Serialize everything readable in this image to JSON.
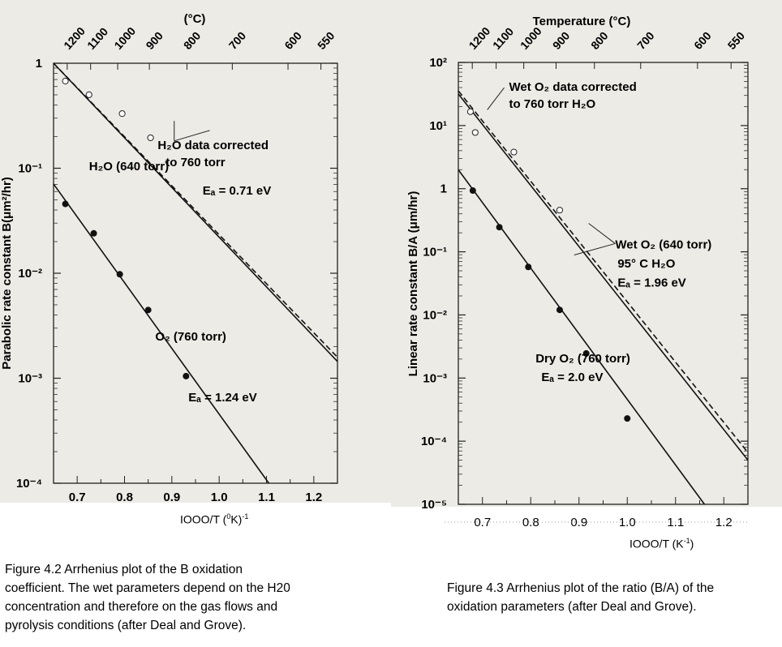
{
  "chart_data": [
    {
      "type": "line",
      "log_y": true,
      "title_top_axis": "(°C)",
      "top_ticks": [
        "1200",
        "1100",
        "1000",
        "900",
        "800",
        "700",
        "600",
        "550"
      ],
      "ylabel": "Parabolic rate constant B(μm²/hr)",
      "xlabel": "IOOO/T (⁰K)⁻¹",
      "xlim": [
        0.65,
        1.25
      ],
      "ylim_exp": [
        -4,
        0
      ],
      "x_ticks": [
        "0.7",
        "0.8",
        "0.9",
        "1.0",
        "1.1",
        "1.2"
      ],
      "y_ticks": [
        "1",
        "10⁻¹",
        "10⁻²",
        "10⁻³",
        "10⁻⁴"
      ],
      "series": [
        {
          "name": "H₂O data corrected to 760 torr",
          "style": "dashed",
          "x": [
            0.65,
            1.25
          ],
          "log10y": [
            0.04,
            -2.8
          ]
        },
        {
          "name": "H₂O (640 torr)",
          "style": "solid",
          "x": [
            0.65,
            1.25
          ],
          "log10y": [
            0.0,
            -2.84
          ],
          "points_open": [
            [
              0.675,
              -0.17
            ],
            [
              0.725,
              -0.3
            ],
            [
              0.795,
              -0.48
            ],
            [
              0.855,
              -0.71
            ]
          ]
        },
        {
          "name": "O₂ (760 torr)",
          "style": "solid",
          "x": [
            0.65,
            1.105
          ],
          "log10y": [
            -1.15,
            -4.0
          ],
          "points_filled": [
            [
              0.675,
              -1.34
            ],
            [
              0.735,
              -1.62
            ],
            [
              0.79,
              -2.01
            ],
            [
              0.85,
              -2.35
            ],
            [
              0.93,
              -2.98
            ]
          ]
        }
      ],
      "annotations": [
        {
          "text": "H₂O data corrected",
          "x": 0.87,
          "log10y": -0.82
        },
        {
          "text": "to 760 torr",
          "x": 0.887,
          "log10y": -0.98
        },
        {
          "text": "H₂O (640 torr)",
          "x": 0.725,
          "log10y": -1.02
        },
        {
          "text": "Eₐ = 0.71 eV",
          "x": 0.965,
          "log10y": -1.25
        },
        {
          "text": "O₂ (760 torr)",
          "x": 0.865,
          "log10y": -2.64
        },
        {
          "text": "Eₐ = 1.24 eV",
          "x": 0.935,
          "log10y": -3.22
        }
      ]
    },
    {
      "type": "line",
      "log_y": true,
      "title_top_axis": "Temperature (°C)",
      "top_ticks": [
        "1200",
        "1100",
        "1000",
        "900",
        "800",
        "700",
        "600",
        "550"
      ],
      "ylabel": "Linear rate constant B/A (μm/hr)",
      "xlabel": "IOOO/T (K⁻¹)",
      "xlim": [
        0.65,
        1.25
      ],
      "ylim_exp": [
        -5,
        2
      ],
      "x_ticks": [
        "0.7",
        "0.8",
        "0.9",
        "1.0",
        "1.1",
        "1.2"
      ],
      "y_ticks": [
        "10²",
        "10¹",
        "1",
        "10⁻¹",
        "10⁻²",
        "10⁻³",
        "10⁻⁴",
        "10⁻⁵"
      ],
      "series": [
        {
          "name": "Wet O₂ data corrected to 760 torr H₂O",
          "style": "dashed",
          "x": [
            0.65,
            1.25
          ],
          "log10y": [
            1.55,
            -4.18
          ]
        },
        {
          "name": "Wet O₂ (640 torr) 95° C H₂O",
          "style": "solid",
          "x": [
            0.65,
            1.25
          ],
          "log10y": [
            1.5,
            -4.3
          ],
          "points_open": [
            [
              0.675,
              1.22
            ],
            [
              0.685,
              0.89
            ],
            [
              0.765,
              0.58
            ],
            [
              0.86,
              -0.34
            ]
          ]
        },
        {
          "name": "Dry O₂ (760 torr)",
          "style": "solid",
          "x": [
            0.65,
            1.16
          ],
          "log10y": [
            0.3,
            -5.0
          ],
          "points_filled": [
            [
              0.68,
              -0.03
            ],
            [
              0.735,
              -0.61
            ],
            [
              0.795,
              -1.24
            ],
            [
              0.86,
              -1.92
            ],
            [
              0.915,
              -2.61
            ],
            [
              1.0,
              -3.64
            ]
          ]
        }
      ],
      "annotations": [
        {
          "text": "Wet O₂ data corrected",
          "x": 0.755,
          "log10y": 1.55
        },
        {
          "text": "to 760 torr H₂O",
          "x": 0.755,
          "log10y": 1.28
        },
        {
          "text": "Wet O₂ (640 torr)",
          "x": 0.975,
          "log10y": -0.95
        },
        {
          "text": "95° C H₂O",
          "x": 0.98,
          "log10y": -1.25
        },
        {
          "text": "Eₐ = 1.96 eV",
          "x": 0.98,
          "log10y": -1.55
        },
        {
          "text": "Dry O₂ (760 torr)",
          "x": 0.81,
          "log10y": -2.75
        },
        {
          "text": "Eₐ = 2.0 eV",
          "x": 0.822,
          "log10y": -3.05
        }
      ]
    }
  ],
  "captions": {
    "left": [
      "Figure 4.2 Arrhenius plot of the B oxidation",
      "coefficient. The wet parameters depend on the H20",
      "concentration and therefore on the gas flows and",
      "pyrolysis conditions (after Deal and Grove)."
    ],
    "right": [
      "Figure 4.3 Arrhenius plot of the ratio (B/A) of the",
      "oxidation parameters (after Deal and Grove)."
    ]
  },
  "xtitles": {
    "left_main": "IOOO/T (",
    "left_sup0": "0",
    "left_mid": "K)",
    "left_sup1": "-1",
    "right_main": "IOOO/T (K",
    "right_sup": "-1",
    "right_end": ")"
  }
}
